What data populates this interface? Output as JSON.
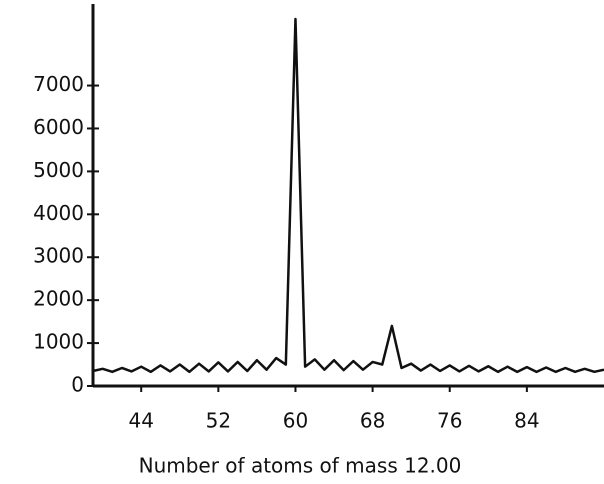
{
  "chart_data": {
    "type": "line",
    "xlabel": "Number of atoms of mass 12.00",
    "x": [
      39,
      40,
      41,
      42,
      43,
      44,
      45,
      46,
      47,
      48,
      49,
      50,
      51,
      52,
      53,
      54,
      55,
      56,
      57,
      58,
      59,
      60,
      61,
      62,
      63,
      64,
      65,
      66,
      67,
      68,
      69,
      70,
      71,
      72,
      73,
      74,
      75,
      76,
      77,
      78,
      79,
      80,
      81,
      82,
      83,
      84,
      85,
      86,
      87,
      88,
      89,
      90,
      91,
      92
    ],
    "series": [
      {
        "color": "#111111",
        "values": [
          350,
          400,
          330,
          420,
          340,
          450,
          330,
          480,
          340,
          500,
          330,
          520,
          340,
          550,
          340,
          560,
          350,
          600,
          380,
          650,
          500,
          8550,
          450,
          620,
          380,
          600,
          370,
          580,
          380,
          560,
          500,
          1400,
          420,
          520,
          360,
          500,
          350,
          480,
          340,
          470,
          340,
          460,
          330,
          450,
          330,
          440,
          330,
          430,
          330,
          420,
          330,
          400,
          330,
          380
        ]
      }
    ],
    "xlim": [
      39,
      92
    ],
    "ylim": [
      0,
      8900
    ],
    "xticks": [
      44,
      52,
      60,
      68,
      76,
      84
    ],
    "yticks": [
      0,
      1000,
      2000,
      3000,
      4000,
      5000,
      6000,
      7000
    ]
  }
}
